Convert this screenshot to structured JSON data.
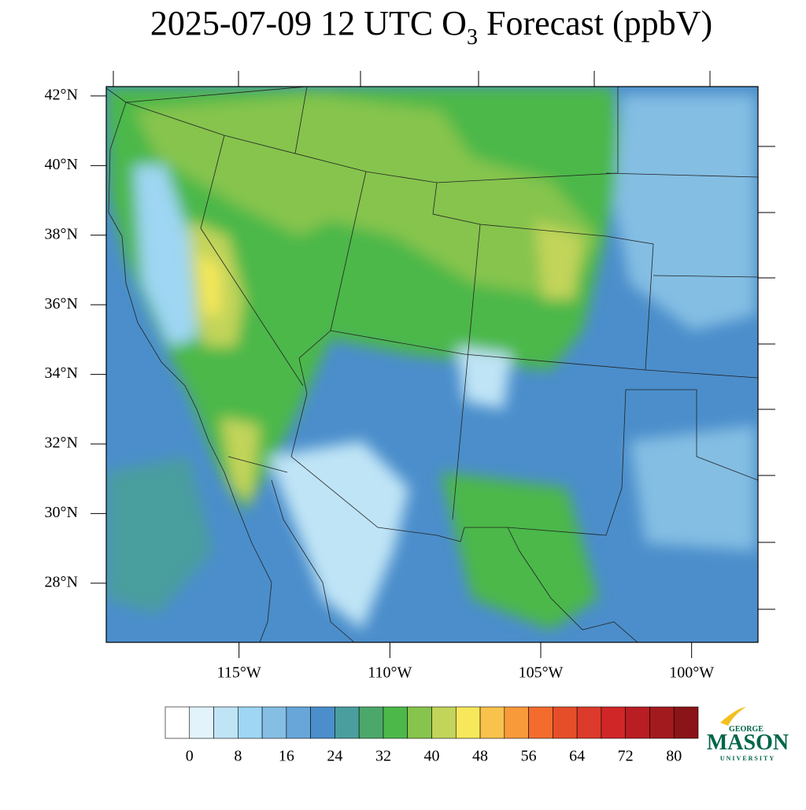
{
  "chart_data": {
    "type": "contour-map",
    "title": {
      "prefix": "2025-07-09 12 UTC O",
      "subscript": "3",
      "suffix": " Forecast (ppbV)"
    },
    "xlim": [
      -119.4,
      -97.8
    ],
    "ylim": [
      26.3,
      42.27
    ],
    "xticks": [
      {
        "value": -115,
        "label": "115°W"
      },
      {
        "value": -110,
        "label": "110°W"
      },
      {
        "value": -105,
        "label": "105°W"
      },
      {
        "value": -100,
        "label": "100°W"
      }
    ],
    "yticks": [
      {
        "value": 28,
        "label": "28°N"
      },
      {
        "value": 30,
        "label": "30°N"
      },
      {
        "value": 32,
        "label": "32°N"
      },
      {
        "value": 34,
        "label": "34°N"
      },
      {
        "value": 36,
        "label": "36°N"
      },
      {
        "value": 38,
        "label": "38°N"
      },
      {
        "value": 40,
        "label": "40°N"
      },
      {
        "value": 42,
        "label": "42°N"
      }
    ],
    "colorbar": {
      "clim": [
        -4,
        84
      ],
      "colors": [
        "#ffffff",
        "#e2f3fb",
        "#bfe4f6",
        "#9ed6f3",
        "#84bee3",
        "#68a6da",
        "#4b8ecb",
        "#4a9e9e",
        "#4ca86a",
        "#4cb84a",
        "#86c44e",
        "#c2d45a",
        "#f6e85a",
        "#f9c24c",
        "#f89a3a",
        "#f36c2e",
        "#e64e2a",
        "#dc3a2a",
        "#d02628",
        "#b81e24",
        "#a21a1e",
        "#8a1418"
      ],
      "ticks": [
        0,
        8,
        16,
        24,
        32,
        40,
        48,
        56,
        64,
        72,
        80
      ]
    },
    "logo": {
      "top": "GEORGE",
      "main": "MASON",
      "bottom": "UNIVERSITY"
    }
  }
}
